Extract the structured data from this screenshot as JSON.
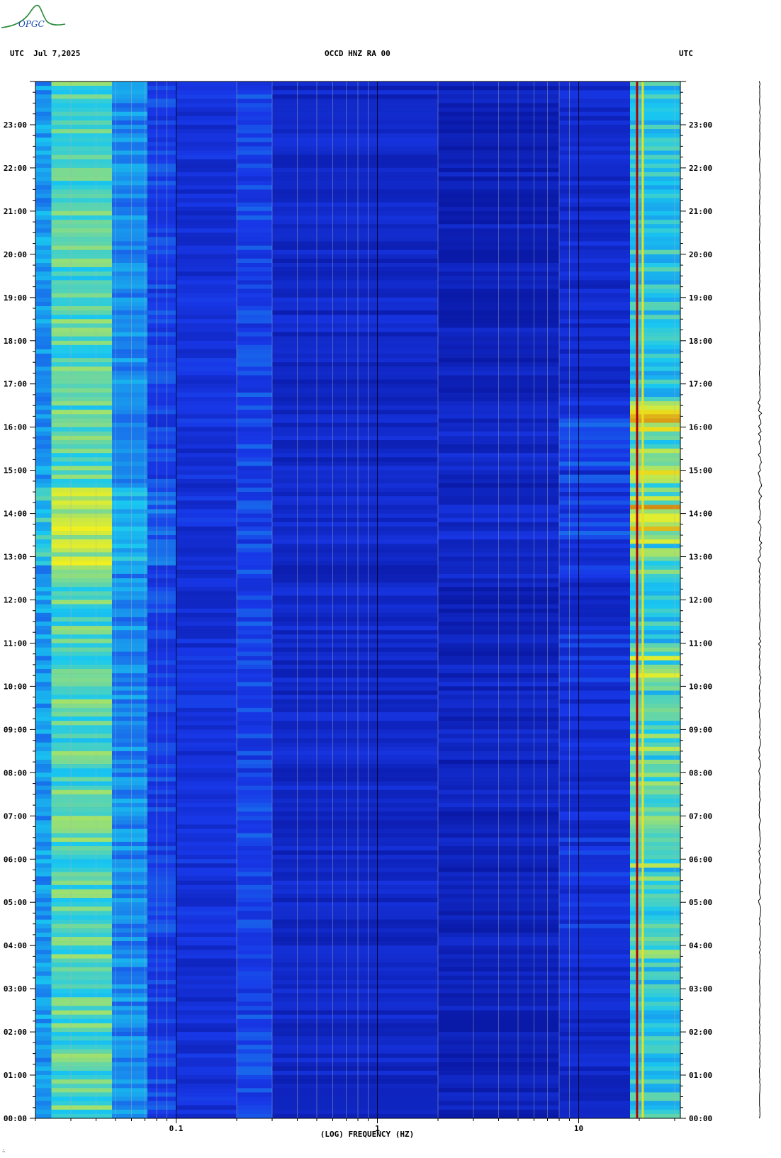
{
  "logo": {
    "text": "OPGC"
  },
  "header": {
    "left": "UTC  Jul 7,2025",
    "center": "OCCD HNZ RA 00",
    "right": "UTC"
  },
  "x_axis_label": "(LOG) FREQUENCY (HZ)",
  "footer_mark": "∴",
  "colors": {
    "background_dark": "#0a1aa8",
    "low": "#1838e8",
    "mid": "#19c8f0",
    "high": "#f0f020",
    "peak": "#b00000"
  },
  "chart_data": {
    "type": "heatmap",
    "title": "OCCD HNZ RA 00",
    "xlabel": "(LOG) FREQUENCY (HZ)",
    "xscale": "log",
    "xlim": [
      0.02,
      32
    ],
    "x_ticks": [
      {
        "value": 0.1,
        "label": "0.1"
      },
      {
        "value": 1,
        "label": "1"
      },
      {
        "value": 10,
        "label": "10"
      }
    ],
    "ylim_hours": [
      0,
      24
    ],
    "y_ticks": [
      "00:00",
      "01:00",
      "02:00",
      "03:00",
      "04:00",
      "05:00",
      "06:00",
      "07:00",
      "08:00",
      "09:00",
      "10:00",
      "11:00",
      "12:00",
      "13:00",
      "14:00",
      "15:00",
      "16:00",
      "17:00",
      "18:00",
      "19:00",
      "20:00",
      "21:00",
      "22:00",
      "23:00"
    ],
    "bands": [
      {
        "f_min": 0.02,
        "f_max": 0.024,
        "level": 0.45
      },
      {
        "f_min": 0.024,
        "f_max": 0.048,
        "level": 0.62
      },
      {
        "f_min": 0.048,
        "f_max": 0.072,
        "level": 0.42
      },
      {
        "f_min": 0.072,
        "f_max": 0.1,
        "level": 0.25
      },
      {
        "f_min": 0.1,
        "f_max": 0.2,
        "level": 0.18
      },
      {
        "f_min": 0.2,
        "f_max": 0.3,
        "level": 0.26
      },
      {
        "f_min": 0.3,
        "f_max": 2.0,
        "level": 0.12
      },
      {
        "f_min": 2.0,
        "f_max": 8.0,
        "level": 0.06
      },
      {
        "f_min": 8.0,
        "f_max": 18.0,
        "level": 0.14
      },
      {
        "f_min": 18.0,
        "f_max": 32.0,
        "level": 0.55
      }
    ],
    "tonal_lines_hz": [
      19.5,
      20.8
    ],
    "active_hours": [
      {
        "start": 13.2,
        "end": 16.6,
        "intensity": 0.9
      },
      {
        "start": 9.8,
        "end": 11.2,
        "intensity": 0.8
      },
      {
        "start": 3.6,
        "end": 9.8,
        "intensity": 0.5
      },
      {
        "start": 12.4,
        "end": 13.2,
        "intensity": 0.6
      }
    ]
  }
}
